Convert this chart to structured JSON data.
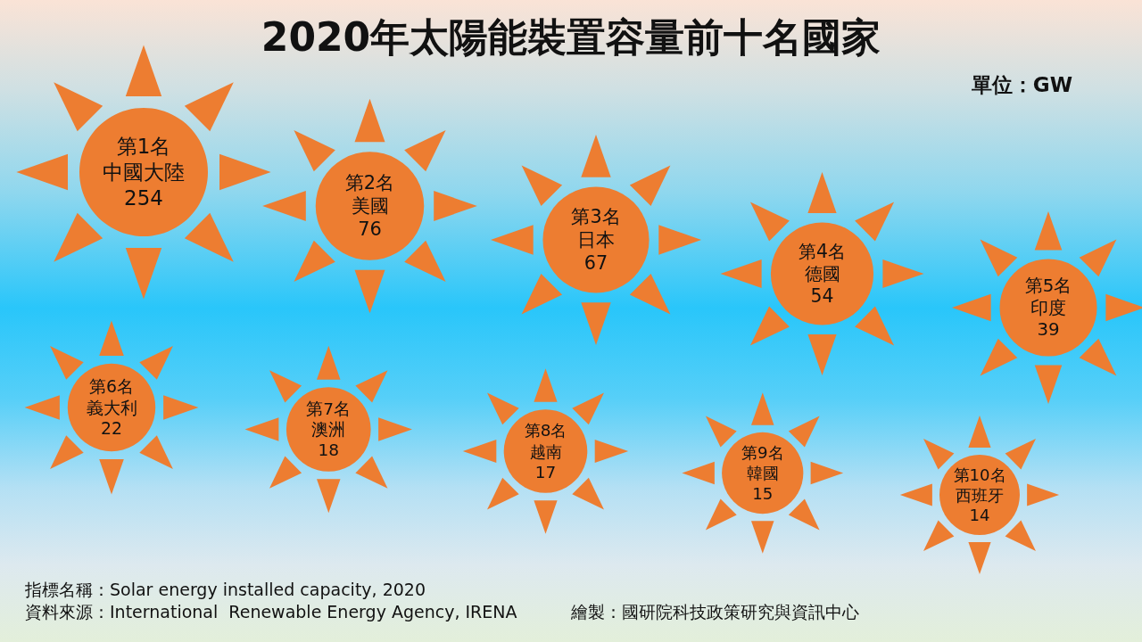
{
  "chart_data": {
    "type": "other",
    "title": "2020年太陽能裝置容量前十名國家",
    "categories": [
      "第1名中國大陸",
      "第2名美國",
      "第3名日本",
      "第4名德國",
      "第5名印度",
      "第6名義大利",
      "第7名澳洲",
      "第8名越南",
      "第9名韓國",
      "第10名西班牙"
    ],
    "values": [
      254,
      76,
      67,
      54,
      39,
      22,
      18,
      17,
      15,
      14
    ],
    "color": "#ed7d31",
    "data_labels": true,
    "annotations": [
      "單位：GW",
      "指標名稱：Solar energy installed capacity, 2020",
      "資料來源：International  Renewable Energy Agency, IRENA",
      "繪製：國研院科技政策研究與資訊中心"
    ]
  }
}
